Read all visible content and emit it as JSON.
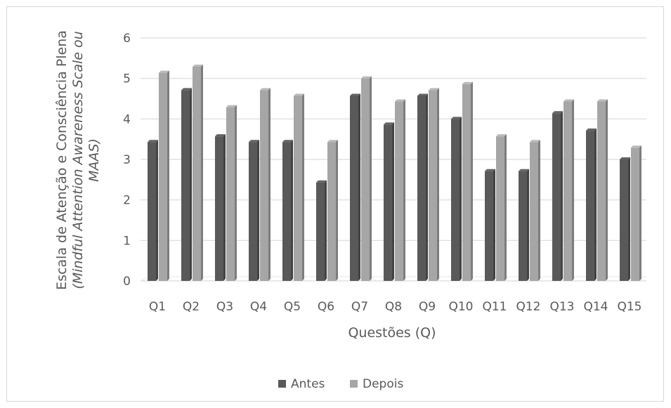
{
  "chart_data": {
    "type": "bar",
    "categories": [
      "Q1",
      "Q2",
      "Q3",
      "Q4",
      "Q5",
      "Q6",
      "Q7",
      "Q8",
      "Q9",
      "Q10",
      "Q11",
      "Q12",
      "Q13",
      "Q14",
      "Q15"
    ],
    "series": [
      {
        "name": "Antes",
        "color": "#595959",
        "values": [
          3.43,
          4.71,
          3.57,
          3.43,
          3.43,
          2.43,
          4.57,
          3.86,
          4.57,
          4.0,
          2.71,
          2.71,
          4.14,
          3.71,
          3.0
        ]
      },
      {
        "name": "Depois",
        "color": "#a6a6a6",
        "values": [
          5.14,
          5.29,
          4.29,
          4.71,
          4.57,
          3.43,
          5.0,
          4.43,
          4.71,
          4.86,
          3.57,
          3.43,
          4.43,
          4.43,
          3.29
        ]
      }
    ],
    "yticks": [
      "0",
      "1",
      "2",
      "3",
      "4",
      "5",
      "6"
    ],
    "ylim": [
      0,
      6
    ],
    "xlabel": "Questões (Q)",
    "ylabel_line1": "Escala de Atenção e Consciência Plena",
    "ylabel_line2": "(Mindful Attention Awareness Scale ou",
    "ylabel_line3": "MAAS)",
    "grid": true,
    "legend": "bottom"
  }
}
